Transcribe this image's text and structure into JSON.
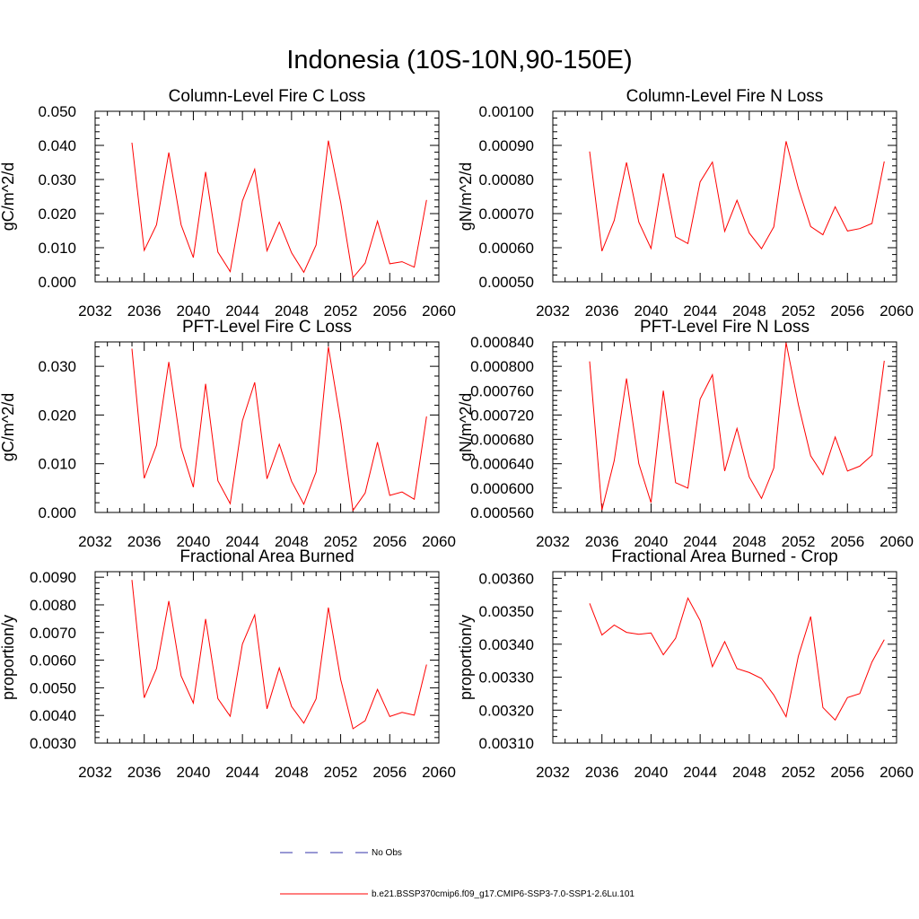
{
  "figure_title": "Indonesia (10S-10N,90-150E)",
  "legend": {
    "items": [
      {
        "label": "No Obs",
        "color": "#3333aa",
        "dash": "dashed"
      },
      {
        "label": "b.e21.BSSP370cmip6.f09_g17.CMIP6-SSP3-7.0-SSP1-2.6Lu.101",
        "color": "#ff0000",
        "dash": "solid"
      }
    ]
  },
  "chart_data": [
    {
      "type": "line",
      "title": "Column-Level Fire C Loss",
      "ylabel": "gC/m^2/d",
      "xlim": [
        2032,
        2060
      ],
      "xticks": [
        "2032",
        "2036",
        "2040",
        "2044",
        "2048",
        "2052",
        "2056",
        "2060"
      ],
      "ylim": [
        0,
        0.05
      ],
      "yticks": [
        "0.000",
        "0.010",
        "0.020",
        "0.030",
        "0.040",
        "0.050"
      ],
      "series": [
        {
          "color": "#ff0000",
          "x": [
            2035,
            2036,
            2037,
            2038,
            2039,
            2040,
            2041,
            2042,
            2043,
            2044,
            2045,
            2046,
            2047,
            2048,
            2049,
            2050,
            2051,
            2052,
            2053,
            2054,
            2055,
            2056,
            2057,
            2058,
            2059
          ],
          "y": [
            0.0408,
            0.0092,
            0.0167,
            0.0379,
            0.0167,
            0.0071,
            0.0322,
            0.0087,
            0.003,
            0.0237,
            0.033,
            0.0091,
            0.0175,
            0.0085,
            0.0028,
            0.0108,
            0.0414,
            0.0233,
            0.0012,
            0.0055,
            0.0178,
            0.0053,
            0.0059,
            0.0043,
            0.024
          ]
        }
      ]
    },
    {
      "type": "line",
      "title": "Column-Level Fire N Loss",
      "ylabel": "gN/m^2/d",
      "xlim": [
        2032,
        2060
      ],
      "xticks": [
        "2032",
        "2036",
        "2040",
        "2044",
        "2048",
        "2052",
        "2056",
        "2060"
      ],
      "ylim": [
        0.0005,
        0.001
      ],
      "yticks": [
        "0.00050",
        "0.00060",
        "0.00070",
        "0.00080",
        "0.00090",
        "0.00100"
      ],
      "series": [
        {
          "color": "#ff0000",
          "x": [
            2035,
            2036,
            2037,
            2038,
            2039,
            2040,
            2041,
            2042,
            2043,
            2044,
            2045,
            2046,
            2047,
            2048,
            2049,
            2050,
            2051,
            2052,
            2053,
            2054,
            2055,
            2056,
            2057,
            2058,
            2059
          ],
          "y": [
            0.000882,
            0.00059,
            0.00068,
            0.00085,
            0.000675,
            0.000598,
            0.000818,
            0.000632,
            0.000612,
            0.000793,
            0.000851,
            0.000648,
            0.000739,
            0.000643,
            0.000597,
            0.000661,
            0.000912,
            0.000774,
            0.000662,
            0.000638,
            0.00072,
            0.000649,
            0.000656,
            0.000671,
            0.000853
          ]
        }
      ]
    },
    {
      "type": "line",
      "title": "PFT-Level Fire C Loss",
      "ylabel": "gC/m^2/d",
      "xlim": [
        2032,
        2060
      ],
      "xticks": [
        "2032",
        "2036",
        "2040",
        "2044",
        "2048",
        "2052",
        "2056",
        "2060"
      ],
      "ylim": [
        0,
        0.035
      ],
      "yticks": [
        "0.000",
        "0.010",
        "0.020",
        "0.030"
      ],
      "series": [
        {
          "color": "#ff0000",
          "x": [
            2035,
            2036,
            2037,
            2038,
            2039,
            2040,
            2041,
            2042,
            2043,
            2044,
            2045,
            2046,
            2047,
            2048,
            2049,
            2050,
            2051,
            2052,
            2053,
            2054,
            2055,
            2056,
            2057,
            2058,
            2059
          ],
          "y": [
            0.0336,
            0.007,
            0.0138,
            0.0309,
            0.0133,
            0.0052,
            0.0264,
            0.0065,
            0.0018,
            0.0188,
            0.0267,
            0.0069,
            0.014,
            0.0064,
            0.0017,
            0.0083,
            0.034,
            0.0186,
            0.0004,
            0.004,
            0.0144,
            0.0035,
            0.0042,
            0.0027,
            0.0197
          ]
        }
      ]
    },
    {
      "type": "line",
      "title": "PFT-Level Fire N Loss",
      "ylabel": "gN/m^2/d",
      "xlim": [
        2032,
        2060
      ],
      "xticks": [
        "2032",
        "2036",
        "2040",
        "2044",
        "2048",
        "2052",
        "2056",
        "2060"
      ],
      "ylim": [
        0.00056,
        0.00084
      ],
      "yticks": [
        "0.000560",
        "0.000600",
        "0.000640",
        "0.000680",
        "0.000720",
        "0.000760",
        "0.000800",
        "0.000840"
      ],
      "series": [
        {
          "color": "#ff0000",
          "x": [
            2035,
            2036,
            2037,
            2038,
            2039,
            2040,
            2041,
            2042,
            2043,
            2044,
            2045,
            2046,
            2047,
            2048,
            2049,
            2050,
            2051,
            2052,
            2053,
            2054,
            2055,
            2056,
            2057,
            2058,
            2059
          ],
          "y": [
            0.000808,
            0.000564,
            0.000645,
            0.00078,
            0.00064,
            0.000576,
            0.00076,
            0.000609,
            0.0006,
            0.000746,
            0.000786,
            0.000628,
            0.000698,
            0.000618,
            0.000583,
            0.000633,
            0.000839,
            0.000737,
            0.000653,
            0.000622,
            0.000684,
            0.000628,
            0.000636,
            0.000654,
            0.000809
          ]
        }
      ]
    },
    {
      "type": "line",
      "title": "Fractional Area Burned",
      "ylabel": "proportion/y",
      "xlim": [
        2032,
        2060
      ],
      "xticks": [
        "2032",
        "2036",
        "2040",
        "2044",
        "2048",
        "2052",
        "2056",
        "2060"
      ],
      "ylim": [
        0.003,
        0.0092
      ],
      "yticks": [
        "0.0030",
        "0.0040",
        "0.0050",
        "0.0060",
        "0.0070",
        "0.0080",
        "0.0090"
      ],
      "series": [
        {
          "color": "#ff0000",
          "x": [
            2035,
            2036,
            2037,
            2038,
            2039,
            2040,
            2041,
            2042,
            2043,
            2044,
            2045,
            2046,
            2047,
            2048,
            2049,
            2050,
            2051,
            2052,
            2053,
            2054,
            2055,
            2056,
            2057,
            2058,
            2059
          ],
          "y": [
            0.0089,
            0.00464,
            0.0057,
            0.00814,
            0.00543,
            0.00445,
            0.00749,
            0.00461,
            0.00397,
            0.00658,
            0.00764,
            0.00424,
            0.00572,
            0.00432,
            0.00372,
            0.0046,
            0.0079,
            0.0053,
            0.00352,
            0.00381,
            0.00494,
            0.00396,
            0.00411,
            0.00401,
            0.00584
          ]
        }
      ]
    },
    {
      "type": "line",
      "title": "Fractional Area Burned - Crop",
      "ylabel": "proportion/y",
      "xlim": [
        2032,
        2060
      ],
      "xticks": [
        "2032",
        "2036",
        "2040",
        "2044",
        "2048",
        "2052",
        "2056",
        "2060"
      ],
      "ylim": [
        0.0031,
        0.00362
      ],
      "yticks": [
        "0.00310",
        "0.00320",
        "0.00330",
        "0.00340",
        "0.00350",
        "0.00360"
      ],
      "series": [
        {
          "color": "#ff0000",
          "x": [
            2035,
            2036,
            2037,
            2038,
            2039,
            2040,
            2041,
            2042,
            2043,
            2044,
            2045,
            2046,
            2047,
            2048,
            2049,
            2050,
            2051,
            2052,
            2053,
            2054,
            2055,
            2056,
            2057,
            2058,
            2059
          ],
          "y": [
            0.003524,
            0.003428,
            0.003458,
            0.003436,
            0.00343,
            0.003434,
            0.003368,
            0.003418,
            0.00354,
            0.003472,
            0.003332,
            0.003408,
            0.003326,
            0.003314,
            0.003296,
            0.003246,
            0.00318,
            0.003364,
            0.003484,
            0.003208,
            0.00317,
            0.003238,
            0.00325,
            0.003346,
            0.003414
          ]
        }
      ]
    }
  ]
}
